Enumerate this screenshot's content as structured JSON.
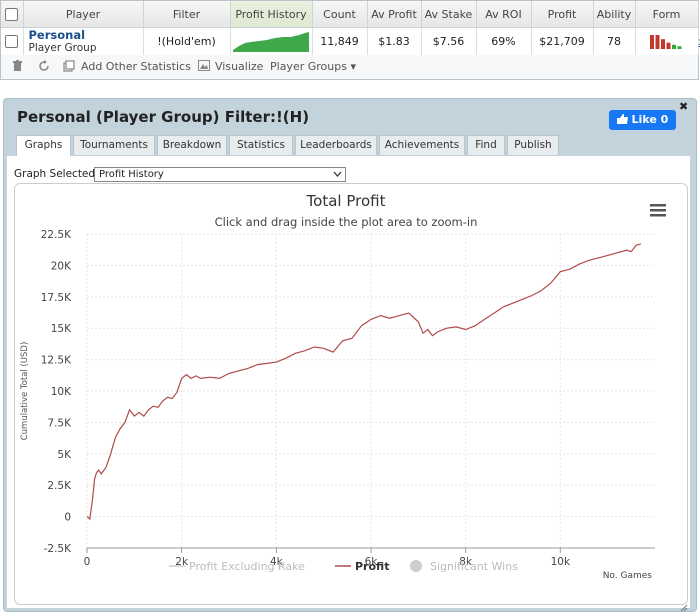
{
  "stats_table": {
    "headers": [
      "Player",
      "Filter",
      "Profit History",
      "Count",
      "Av Profit",
      "Av Stake",
      "Av ROI",
      "Profit",
      "Ability",
      "Form"
    ],
    "row": {
      "player_name": "Personal",
      "player_type": "Player Group",
      "filter": "!(Hold'em)",
      "count": "11,849",
      "av_profit": "$1.83",
      "av_stake": "$7.56",
      "av_roi": "69%",
      "profit": "$21,709",
      "ability": "78",
      "remove": "x"
    },
    "form_bars": [
      {
        "value": 1.0,
        "color": "#c0392b"
      },
      {
        "value": 1.0,
        "color": "#c0392b"
      },
      {
        "value": 0.7,
        "color": "#c0392b"
      },
      {
        "value": 0.45,
        "color": "#c0392b"
      },
      {
        "value": 0.3,
        "color": "#2eaa3a"
      },
      {
        "value": 0.2,
        "color": "#2eaa3a"
      }
    ]
  },
  "toolbar": {
    "add_stats_label": "Add Other Statistics",
    "visualize_label": "Visualize",
    "player_groups_label": "Player Groups ▾"
  },
  "panel": {
    "title": "Personal (Player Group) Filter:!(H)",
    "like_label": "Like 0",
    "close_label": "✖",
    "tabs": [
      "Graphs",
      "Tournaments",
      "Breakdown",
      "Statistics",
      "Leaderboards",
      "Achievements",
      "Find",
      "Publish"
    ],
    "graph_select_label": "Graph Selected:",
    "graph_select_value": "Profit History"
  },
  "chart_data": {
    "type": "line",
    "title": "Total Profit",
    "subtitle": "Click and drag inside the plot area to zoom-in",
    "xlabel": "No. Games",
    "ylabel": "Cumulative Total (USD)",
    "xlim": [
      0,
      12000
    ],
    "ylim": [
      -2500,
      22500
    ],
    "x_ticks": [
      0,
      2000,
      4000,
      6000,
      8000,
      10000
    ],
    "x_tick_labels": [
      "0",
      "2k",
      "4k",
      "6k",
      "8k",
      "10k"
    ],
    "y_ticks": [
      -2500,
      0,
      2500,
      5000,
      7500,
      10000,
      12500,
      15000,
      17500,
      20000,
      22500
    ],
    "y_tick_labels": [
      "-2.5K",
      "0",
      "2.5K",
      "5K",
      "7.5K",
      "10K",
      "12.5K",
      "15K",
      "17.5K",
      "20K",
      "22.5K"
    ],
    "legend": [
      "Profit Excluding Rake",
      "Profit",
      "Significant Wins"
    ],
    "legend_colors": [
      "#cccccc",
      "#b04a4a",
      "#cccccc"
    ],
    "series": [
      {
        "name": "Profit",
        "color": "#b04a4a",
        "x": [
          0,
          60,
          120,
          160,
          200,
          250,
          300,
          400,
          500,
          600,
          700,
          800,
          900,
          1000,
          1100,
          1200,
          1300,
          1400,
          1500,
          1600,
          1700,
          1800,
          1900,
          2000,
          2100,
          2200,
          2300,
          2400,
          2600,
          2800,
          3000,
          3200,
          3400,
          3600,
          3800,
          4000,
          4200,
          4400,
          4600,
          4800,
          5000,
          5200,
          5400,
          5600,
          5800,
          6000,
          6200,
          6400,
          6600,
          6800,
          7000,
          7100,
          7200,
          7300,
          7400,
          7600,
          7800,
          8000,
          8200,
          8400,
          8600,
          8800,
          9000,
          9200,
          9400,
          9600,
          9800,
          10000,
          10200,
          10400,
          10600,
          10800,
          11000,
          11200,
          11400,
          11500,
          11600,
          11700
        ],
        "y": [
          0,
          -200,
          1500,
          3000,
          3500,
          3700,
          3400,
          3900,
          5000,
          6300,
          7000,
          7500,
          8500,
          8000,
          8300,
          8000,
          8500,
          8800,
          8700,
          9200,
          9500,
          9400,
          9900,
          11000,
          11300,
          11000,
          11200,
          11000,
          11100,
          11000,
          11400,
          11600,
          11800,
          12100,
          12200,
          12300,
          12600,
          13000,
          13200,
          13500,
          13400,
          13100,
          14000,
          14200,
          15200,
          15700,
          16000,
          15800,
          16000,
          16200,
          15500,
          14600,
          14900,
          14400,
          14700,
          15000,
          15100,
          14900,
          15200,
          15700,
          16200,
          16700,
          17000,
          17300,
          17600,
          18000,
          18600,
          19500,
          19700,
          20100,
          20400,
          20600,
          20800,
          21000,
          21200,
          21100,
          21600,
          21700
        ]
      }
    ]
  }
}
